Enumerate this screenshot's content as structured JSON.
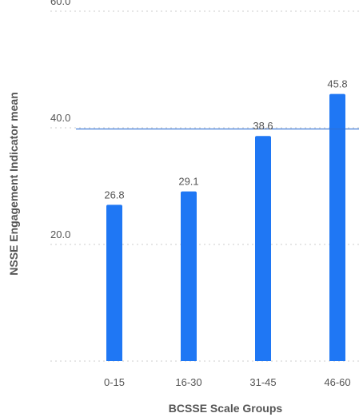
{
  "chart_data": {
    "type": "bar",
    "categories": [
      "0-15",
      "16-30",
      "31-45",
      "46-60"
    ],
    "values": [
      26.8,
      29.1,
      38.6,
      45.8
    ],
    "value_labels": [
      "26.8",
      "29.1",
      "38.6",
      "45.8"
    ],
    "xlabel": "BCSSE Scale Groups",
    "ylabel": "NSSE Engagement Indicator mean",
    "ylim": [
      0,
      60
    ],
    "yticks": [
      20,
      40,
      60
    ],
    "ytick_labels": [
      "20.0",
      "40.0",
      "60.0"
    ],
    "reference_line": 39.8,
    "grid": true,
    "bar_color": "#1f77f4",
    "reference_line_color": "#2f6fd6"
  }
}
